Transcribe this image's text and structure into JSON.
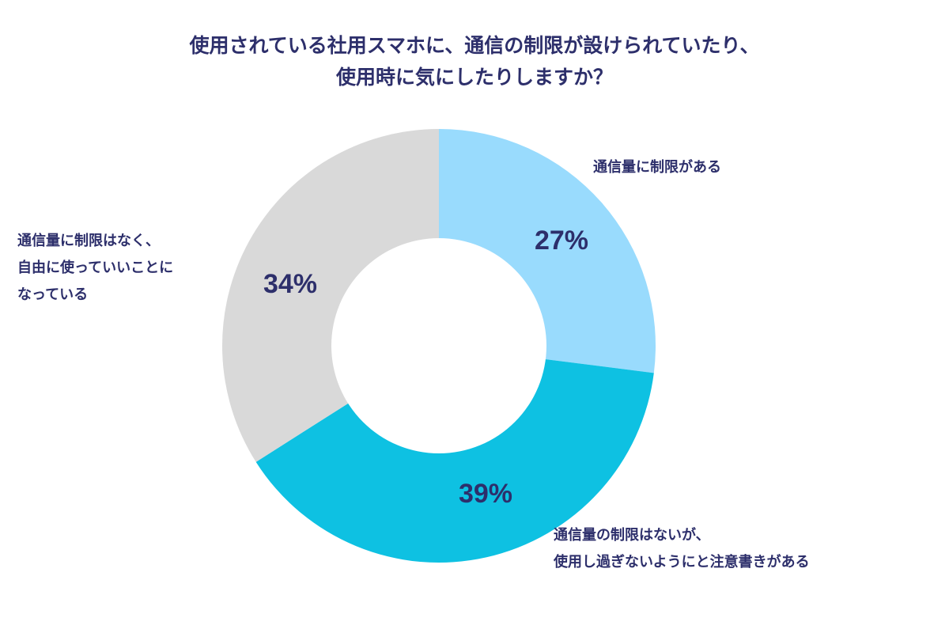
{
  "chart_data": {
    "type": "pie",
    "style": "donut",
    "title_lines": [
      "使用されている社用スマホに、通信の制限が設けられていたり、",
      "使用時に気にしたりしますか？"
    ],
    "unit": "%",
    "slices": [
      {
        "label_lines": [
          "通信量に制限がある"
        ],
        "value": 27,
        "value_label": "27%",
        "color": "#99dbfd"
      },
      {
        "label_lines": [
          "通信量の制限はないが、",
          "使用し過ぎないようにと注意書きがある"
        ],
        "value": 39,
        "value_label": "39%",
        "color": "#0ec1e2"
      },
      {
        "label_lines": [
          "通信量に制限はなく、",
          "自由に使っていいことに",
          "なっている"
        ],
        "value": 34,
        "value_label": "34%",
        "color": "#d9d9d9"
      }
    ],
    "start_angle": "12 o'clock",
    "direction": "clockwise",
    "legend": "none"
  }
}
